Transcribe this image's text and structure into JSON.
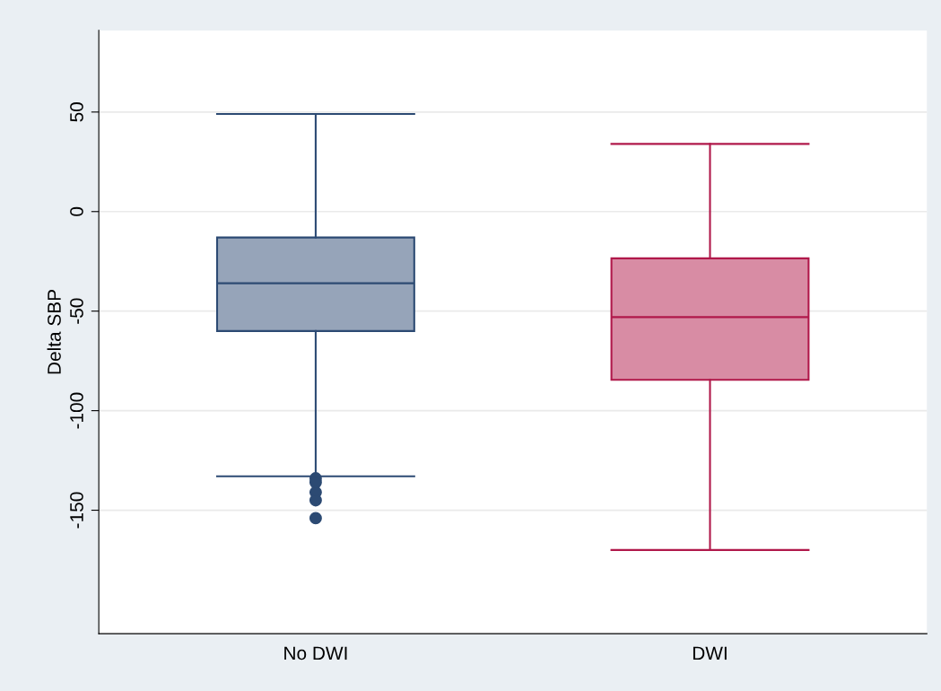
{
  "chart_data": {
    "type": "box",
    "ylabel": "Delta SBP",
    "categories": [
      "No DWI",
      "DWI"
    ],
    "series": [
      {
        "color": "#2c4a73",
        "boxes": [
          {
            "low": -133,
            "q1": -60,
            "median": -36,
            "q3": -13,
            "high": 49,
            "outliers": [
              -134,
              -136,
              -141,
              -145,
              -154
            ]
          },
          null
        ]
      },
      {
        "color": "#b0184a",
        "boxes": [
          null,
          {
            "low": -170,
            "q1": -84.5,
            "median": -53,
            "q3": -23.5,
            "high": 34
          }
        ]
      }
    ],
    "ylim": [
      -212,
      91
    ],
    "yticks": [
      -150,
      -100,
      -50,
      0,
      50
    ],
    "grid": "y",
    "legend": false
  }
}
